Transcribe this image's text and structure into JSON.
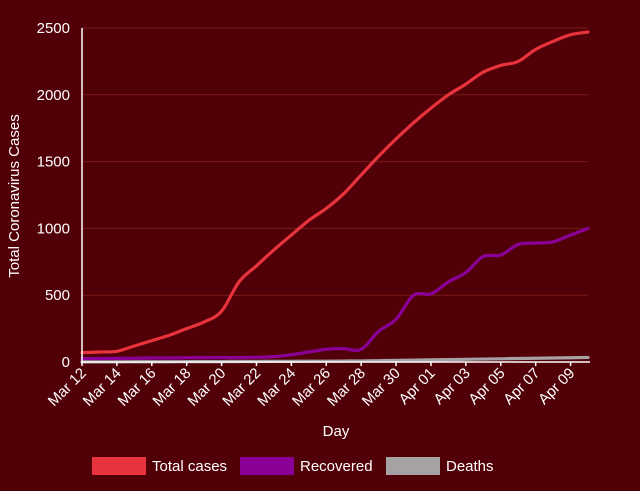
{
  "chart_data": {
    "type": "line",
    "title": "",
    "xlabel": "Day",
    "ylabel": "Total Coronavirus Cases",
    "ylim": [
      0,
      2500
    ],
    "yticks": [
      0,
      500,
      1000,
      1500,
      2000,
      2500
    ],
    "grid": true,
    "legend": "bottom",
    "x": [
      "Mar 12",
      "Mar 13",
      "Mar 14",
      "Mar 15",
      "Mar 16",
      "Mar 17",
      "Mar 18",
      "Mar 19",
      "Mar 20",
      "Mar 21",
      "Mar 22",
      "Mar 23",
      "Mar 24",
      "Mar 25",
      "Mar 26",
      "Mar 27",
      "Mar 28",
      "Mar 29",
      "Mar 30",
      "Mar 31",
      "Apr 01",
      "Apr 02",
      "Apr 03",
      "Apr 04",
      "Apr 05",
      "Apr 06",
      "Apr 07",
      "Apr 08",
      "Apr 09",
      "Apr 10"
    ],
    "x_tick_labels": [
      "Mar 12",
      "Mar 14",
      "Mar 16",
      "Mar 18",
      "Mar 20",
      "Mar 22",
      "Mar 24",
      "Mar 26",
      "Mar 28",
      "Mar 30",
      "Apr 01",
      "Apr 03",
      "Apr 05",
      "Apr 07",
      "Apr 09"
    ],
    "series": [
      {
        "name": "Total cases",
        "color": "#e8323c",
        "values": [
          70,
          75,
          80,
          120,
          160,
          200,
          250,
          300,
          380,
          600,
          720,
          840,
          950,
          1060,
          1150,
          1260,
          1400,
          1540,
          1670,
          1790,
          1900,
          2000,
          2080,
          2170,
          2220,
          2250,
          2340,
          2400,
          2450,
          2470
        ]
      },
      {
        "name": "Recovered",
        "color": "#8b0096",
        "values": [
          25,
          26,
          27,
          28,
          30,
          30,
          32,
          32,
          33,
          33,
          35,
          40,
          55,
          75,
          95,
          100,
          95,
          230,
          320,
          500,
          510,
          600,
          670,
          790,
          800,
          880,
          890,
          900,
          950,
          1000
        ]
      },
      {
        "name": "Deaths",
        "color": "#a6a2a4",
        "values": [
          1,
          1,
          1,
          2,
          2,
          2,
          3,
          3,
          3,
          4,
          4,
          5,
          5,
          6,
          6,
          7,
          8,
          10,
          12,
          14,
          16,
          18,
          20,
          22,
          24,
          26,
          28,
          30,
          32,
          34
        ]
      }
    ]
  }
}
